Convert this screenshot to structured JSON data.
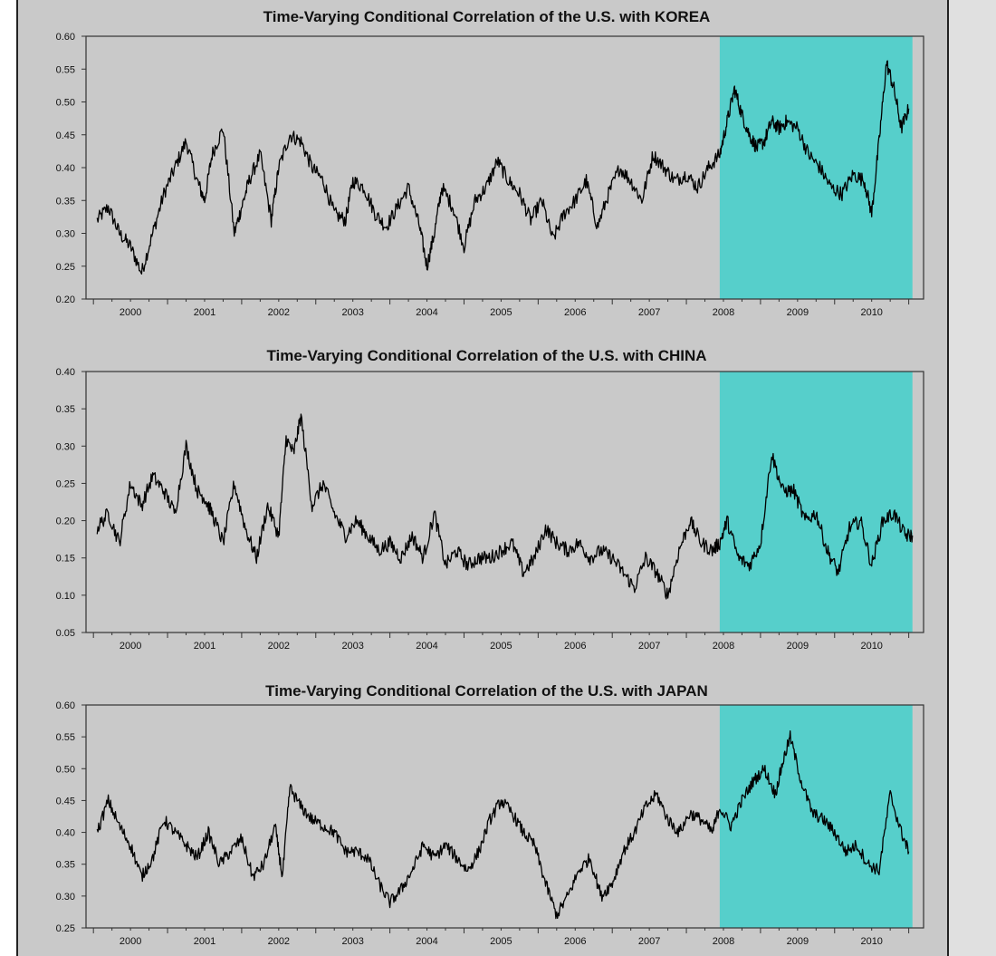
{
  "colors": {
    "panel_bg": "#c9c9c9",
    "plot_bg": "#c9c9c9",
    "highlight": "#56cfcb",
    "line": "#000000"
  },
  "chart_data": [
    {
      "type": "line",
      "title": "Time-Varying Conditional Correlation of the U.S. with KOREA",
      "ylim": [
        0.2,
        0.6
      ],
      "yticks": [
        "0.20",
        "0.25",
        "0.30",
        "0.35",
        "0.40",
        "0.45",
        "0.50",
        "0.55",
        "0.60"
      ],
      "xlim": [
        1999.4,
        2010.7
      ],
      "xticks": [
        "2000",
        "2001",
        "2002",
        "2003",
        "2004",
        "2005",
        "2006",
        "2007",
        "2008",
        "2009",
        "2010"
      ],
      "shaded_region": [
        2007.95,
        2010.55
      ],
      "series": [
        {
          "x": [
            1999.55,
            1999.7,
            1999.85,
            2000.0,
            2000.15,
            2000.3,
            2000.45,
            2000.6,
            2000.75,
            2000.9,
            2001.0,
            2001.1,
            2001.25,
            2001.4,
            2001.5,
            2001.6,
            2001.75,
            2001.9,
            2002.0,
            2002.15,
            2002.3,
            2002.45,
            2002.6,
            2002.75,
            2002.9,
            2003.0,
            2003.15,
            2003.3,
            2003.45,
            2003.6,
            2003.75,
            2003.9,
            2004.0,
            2004.1,
            2004.2,
            2004.35,
            2004.5,
            2004.65,
            2004.8,
            2004.95,
            2005.1,
            2005.25,
            2005.4,
            2005.55,
            2005.7,
            2005.85,
            2006.0,
            2006.15,
            2006.3,
            2006.45,
            2006.6,
            2006.75,
            2006.9,
            2007.05,
            2007.2,
            2007.35,
            2007.5,
            2007.65,
            2007.8,
            2007.95,
            2008.05,
            2008.15,
            2008.25,
            2008.35,
            2008.45,
            2008.55,
            2008.65,
            2008.75,
            2008.85,
            2009.0,
            2009.15,
            2009.3,
            2009.45,
            2009.6,
            2009.75,
            2009.9,
            2010.0,
            2010.1,
            2010.2,
            2010.3,
            2010.4,
            2010.5
          ],
          "y": [
            0.32,
            0.34,
            0.3,
            0.28,
            0.24,
            0.3,
            0.36,
            0.4,
            0.44,
            0.38,
            0.35,
            0.42,
            0.46,
            0.3,
            0.34,
            0.38,
            0.42,
            0.32,
            0.4,
            0.45,
            0.44,
            0.4,
            0.38,
            0.33,
            0.32,
            0.38,
            0.37,
            0.33,
            0.31,
            0.34,
            0.37,
            0.31,
            0.25,
            0.3,
            0.37,
            0.34,
            0.28,
            0.35,
            0.37,
            0.41,
            0.38,
            0.36,
            0.32,
            0.35,
            0.29,
            0.33,
            0.35,
            0.38,
            0.31,
            0.36,
            0.4,
            0.38,
            0.35,
            0.42,
            0.4,
            0.38,
            0.39,
            0.37,
            0.4,
            0.42,
            0.47,
            0.52,
            0.48,
            0.45,
            0.43,
            0.44,
            0.47,
            0.46,
            0.47,
            0.46,
            0.42,
            0.4,
            0.37,
            0.36,
            0.39,
            0.38,
            0.33,
            0.44,
            0.56,
            0.52,
            0.46,
            0.49
          ]
        }
      ]
    },
    {
      "type": "line",
      "title": "Time-Varying Conditional Correlation of the U.S. with CHINA",
      "ylim": [
        0.05,
        0.4
      ],
      "yticks": [
        "0.05",
        "0.10",
        "0.15",
        "0.20",
        "0.25",
        "0.30",
        "0.35",
        "0.40"
      ],
      "xlim": [
        1999.4,
        2010.7
      ],
      "xticks": [
        "2000",
        "2001",
        "2002",
        "2003",
        "2004",
        "2005",
        "2006",
        "2007",
        "2008",
        "2009",
        "2010"
      ],
      "shaded_region": [
        2007.95,
        2010.55
      ],
      "series": [
        {
          "x": [
            1999.55,
            1999.7,
            1999.85,
            2000.0,
            2000.15,
            2000.3,
            2000.45,
            2000.6,
            2000.75,
            2000.9,
            2001.0,
            2001.1,
            2001.25,
            2001.4,
            2001.55,
            2001.7,
            2001.85,
            2002.0,
            2002.1,
            2002.2,
            2002.3,
            2002.45,
            2002.6,
            2002.75,
            2002.9,
            2003.05,
            2003.2,
            2003.35,
            2003.5,
            2003.65,
            2003.8,
            2003.95,
            2004.1,
            2004.25,
            2004.4,
            2004.55,
            2004.7,
            2004.85,
            2005.0,
            2005.15,
            2005.3,
            2005.45,
            2005.6,
            2005.75,
            2005.9,
            2006.05,
            2006.2,
            2006.35,
            2006.5,
            2006.65,
            2006.8,
            2006.95,
            2007.1,
            2007.25,
            2007.4,
            2007.55,
            2007.7,
            2007.85,
            2007.95,
            2008.05,
            2008.2,
            2008.35,
            2008.5,
            2008.65,
            2008.8,
            2008.95,
            2009.1,
            2009.25,
            2009.4,
            2009.55,
            2009.7,
            2009.85,
            2010.0,
            2010.15,
            2010.3,
            2010.45,
            2010.55
          ],
          "y": [
            0.19,
            0.21,
            0.17,
            0.25,
            0.22,
            0.26,
            0.24,
            0.21,
            0.3,
            0.24,
            0.23,
            0.21,
            0.17,
            0.25,
            0.19,
            0.15,
            0.22,
            0.18,
            0.31,
            0.29,
            0.34,
            0.22,
            0.25,
            0.21,
            0.18,
            0.2,
            0.18,
            0.16,
            0.17,
            0.15,
            0.18,
            0.15,
            0.21,
            0.14,
            0.16,
            0.14,
            0.15,
            0.15,
            0.16,
            0.17,
            0.13,
            0.15,
            0.19,
            0.17,
            0.16,
            0.17,
            0.15,
            0.16,
            0.15,
            0.13,
            0.11,
            0.15,
            0.13,
            0.1,
            0.16,
            0.2,
            0.17,
            0.16,
            0.17,
            0.2,
            0.15,
            0.14,
            0.17,
            0.29,
            0.24,
            0.24,
            0.2,
            0.21,
            0.16,
            0.13,
            0.19,
            0.2,
            0.14,
            0.2,
            0.21,
            0.18,
            0.18
          ]
        }
      ]
    },
    {
      "type": "line",
      "title": "Time-Varying Conditional Correlation of the U.S. with JAPAN",
      "ylim": [
        0.25,
        0.6
      ],
      "yticks": [
        "0.25",
        "0.30",
        "0.35",
        "0.40",
        "0.45",
        "0.50",
        "0.55",
        "0.60"
      ],
      "xlim": [
        1999.4,
        2010.7
      ],
      "xticks": [
        "2000",
        "2001",
        "2002",
        "2003",
        "2004",
        "2005",
        "2006",
        "2007",
        "2008",
        "2009",
        "2010"
      ],
      "shaded_region": [
        2007.95,
        2010.55
      ],
      "series": [
        {
          "x": [
            1999.55,
            1999.7,
            1999.85,
            2000.0,
            2000.15,
            2000.3,
            2000.45,
            2000.6,
            2000.75,
            2000.9,
            2001.05,
            2001.2,
            2001.35,
            2001.5,
            2001.65,
            2001.8,
            2001.95,
            2002.05,
            2002.15,
            2002.3,
            2002.45,
            2002.6,
            2002.75,
            2002.9,
            2003.05,
            2003.2,
            2003.35,
            2003.5,
            2003.65,
            2003.8,
            2003.95,
            2004.1,
            2004.25,
            2004.4,
            2004.55,
            2004.7,
            2004.85,
            2005.0,
            2005.15,
            2005.3,
            2005.45,
            2005.6,
            2005.75,
            2005.9,
            2006.05,
            2006.2,
            2006.35,
            2006.5,
            2006.65,
            2006.8,
            2006.95,
            2007.1,
            2007.25,
            2007.4,
            2007.55,
            2007.7,
            2007.85,
            2007.95,
            2008.1,
            2008.25,
            2008.4,
            2008.55,
            2008.7,
            2008.8,
            2008.9,
            2009.05,
            2009.2,
            2009.35,
            2009.5,
            2009.65,
            2009.8,
            2009.95,
            2010.1,
            2010.25,
            2010.4,
            2010.5
          ],
          "y": [
            0.4,
            0.45,
            0.41,
            0.38,
            0.33,
            0.36,
            0.42,
            0.4,
            0.38,
            0.36,
            0.4,
            0.35,
            0.37,
            0.39,
            0.33,
            0.35,
            0.41,
            0.33,
            0.47,
            0.44,
            0.42,
            0.41,
            0.4,
            0.37,
            0.37,
            0.36,
            0.32,
            0.29,
            0.31,
            0.34,
            0.38,
            0.36,
            0.38,
            0.36,
            0.34,
            0.37,
            0.42,
            0.45,
            0.43,
            0.4,
            0.38,
            0.32,
            0.27,
            0.3,
            0.34,
            0.36,
            0.3,
            0.32,
            0.37,
            0.4,
            0.44,
            0.46,
            0.42,
            0.4,
            0.43,
            0.42,
            0.4,
            0.44,
            0.41,
            0.45,
            0.48,
            0.5,
            0.46,
            0.51,
            0.55,
            0.48,
            0.43,
            0.42,
            0.4,
            0.37,
            0.38,
            0.35,
            0.34,
            0.46,
            0.4,
            0.37
          ]
        }
      ]
    }
  ]
}
